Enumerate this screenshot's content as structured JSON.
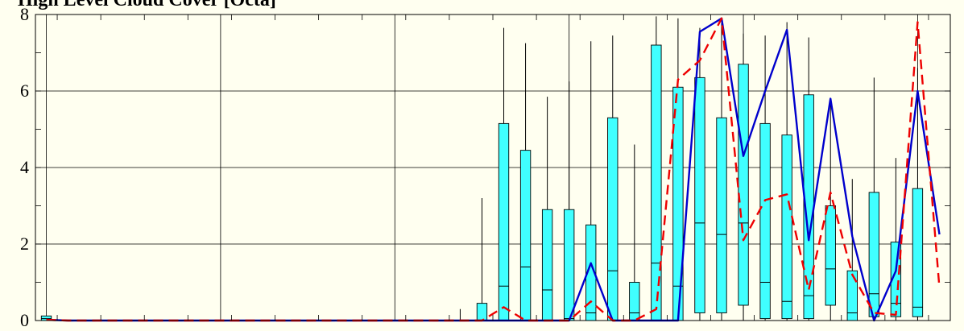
{
  "chart_data": {
    "type": "box",
    "title": "High Level Cloud Cover [Octa]",
    "xlabel": "",
    "ylabel": "",
    "ylim": [
      0,
      8
    ],
    "yticks": [
      "0",
      "2",
      "4",
      "6",
      "8"
    ],
    "grid": true,
    "legend": "none",
    "colors": {
      "background": "#fffff0",
      "box_fill": "#40ffff",
      "median_line": "#0000cc",
      "mean_line": "#ee0000",
      "gridline": "#000000"
    },
    "boxes": [
      {
        "slot": 0,
        "min": 0,
        "q1": 0,
        "median": 0.05,
        "q3": 0.12,
        "max": 0.12
      },
      {
        "slot": 1,
        "min": 0,
        "q1": 0,
        "median": 0,
        "q3": 0,
        "max": 0
      },
      {
        "slot": 2,
        "min": 0,
        "q1": 0,
        "median": 0,
        "q3": 0,
        "max": 0
      },
      {
        "slot": 3,
        "min": 0,
        "q1": 0,
        "median": 0,
        "q3": 0,
        "max": 0
      },
      {
        "slot": 4,
        "min": 0,
        "q1": 0,
        "median": 0,
        "q3": 0,
        "max": 0
      },
      {
        "slot": 5,
        "min": 0,
        "q1": 0,
        "median": 0,
        "q3": 0,
        "max": 0
      },
      {
        "slot": 6,
        "min": 0,
        "q1": 0,
        "median": 0,
        "q3": 0,
        "max": 0
      },
      {
        "slot": 7,
        "min": 0,
        "q1": 0,
        "median": 0,
        "q3": 0,
        "max": 0
      },
      {
        "slot": 8,
        "min": 0,
        "q1": 0,
        "median": 0,
        "q3": 0,
        "max": 0
      },
      {
        "slot": 9,
        "min": 0,
        "q1": 0,
        "median": 0,
        "q3": 0,
        "max": 0
      },
      {
        "slot": 10,
        "min": 0,
        "q1": 0,
        "median": 0,
        "q3": 0,
        "max": 0
      },
      {
        "slot": 11,
        "min": 0,
        "q1": 0,
        "median": 0,
        "q3": 0,
        "max": 0
      },
      {
        "slot": 12,
        "min": 0,
        "q1": 0,
        "median": 0,
        "q3": 0,
        "max": 0
      },
      {
        "slot": 13,
        "min": 0,
        "q1": 0,
        "median": 0,
        "q3": 0,
        "max": 0
      },
      {
        "slot": 14,
        "min": 0,
        "q1": 0,
        "median": 0,
        "q3": 0,
        "max": 0
      },
      {
        "slot": 15,
        "min": 0,
        "q1": 0,
        "median": 0,
        "q3": 0,
        "max": 0
      },
      {
        "slot": 16,
        "min": 0,
        "q1": 0,
        "median": 0,
        "q3": 0,
        "max": 0
      },
      {
        "slot": 17,
        "min": 0,
        "q1": 0,
        "median": 0,
        "q3": 0,
        "max": 0
      },
      {
        "slot": 18,
        "min": 0,
        "q1": 0,
        "median": 0,
        "q3": 0,
        "max": 0
      },
      {
        "slot": 19,
        "min": 0,
        "q1": 0,
        "median": 0,
        "q3": 0,
        "max": 0.3
      },
      {
        "slot": 20,
        "min": 0,
        "q1": 0,
        "median": 0,
        "q3": 0.45,
        "max": 3.2
      },
      {
        "slot": 21,
        "min": 0,
        "q1": 0,
        "median": 0.9,
        "q3": 5.15,
        "max": 7.65
      },
      {
        "slot": 22,
        "min": 0,
        "q1": 0,
        "median": 1.4,
        "q3": 4.45,
        "max": 7.25
      },
      {
        "slot": 23,
        "min": 0,
        "q1": 0,
        "median": 0.8,
        "q3": 2.9,
        "max": 5.85
      },
      {
        "slot": 24,
        "min": 0,
        "q1": 0,
        "median": 0.05,
        "q3": 2.9,
        "max": 6.25
      },
      {
        "slot": 25,
        "min": 0,
        "q1": 0,
        "median": 0.2,
        "q3": 2.5,
        "max": 7.3
      },
      {
        "slot": 26,
        "min": 0,
        "q1": 0,
        "median": 1.3,
        "q3": 5.3,
        "max": 7.45
      },
      {
        "slot": 27,
        "min": 0,
        "q1": 0,
        "median": 0.2,
        "q3": 1.0,
        "max": 4.6
      },
      {
        "slot": 28,
        "min": 0,
        "q1": 0,
        "median": 1.5,
        "q3": 7.2,
        "max": 7.95
      },
      {
        "slot": 29,
        "min": 0,
        "q1": 0,
        "median": 0.9,
        "q3": 6.1,
        "max": 7.9
      },
      {
        "slot": 30,
        "min": 0,
        "q1": 0.2,
        "median": 2.55,
        "q3": 6.35,
        "max": 7.65
      },
      {
        "slot": 31,
        "min": 0,
        "q1": 0.2,
        "median": 2.25,
        "q3": 5.3,
        "max": 7.9
      },
      {
        "slot": 32,
        "min": 0,
        "q1": 0.4,
        "median": 2.55,
        "q3": 6.7,
        "max": 7.5
      },
      {
        "slot": 33,
        "min": 0,
        "q1": 0.05,
        "median": 1.0,
        "q3": 5.15,
        "max": 7.45
      },
      {
        "slot": 34,
        "min": 0,
        "q1": 0.05,
        "median": 0.5,
        "q3": 4.85,
        "max": 7.8
      },
      {
        "slot": 35,
        "min": 0,
        "q1": 0.05,
        "median": 0.65,
        "q3": 5.9,
        "max": 7.4
      },
      {
        "slot": 36,
        "min": 0,
        "q1": 0.4,
        "median": 1.35,
        "q3": 3.0,
        "max": 5.75
      },
      {
        "slot": 37,
        "min": 0,
        "q1": 0,
        "median": 0.2,
        "q3": 1.3,
        "max": 3.7
      },
      {
        "slot": 38,
        "min": 0,
        "q1": 0.1,
        "median": 0.7,
        "q3": 3.35,
        "max": 6.35
      },
      {
        "slot": 39,
        "min": 0,
        "q1": 0.1,
        "median": 0.45,
        "q3": 2.05,
        "max": 4.25
      },
      {
        "slot": 40,
        "min": 0,
        "q1": 0.1,
        "median": 0.35,
        "q3": 3.45,
        "max": 6.6
      }
    ],
    "series": [
      {
        "style": "solid",
        "color": "#0000cc",
        "values": [
          0.02,
          0,
          0,
          0,
          0,
          0,
          0,
          0,
          0,
          0,
          0,
          0,
          0,
          0,
          0,
          0,
          0,
          0,
          0,
          0,
          0,
          0,
          0,
          0,
          0,
          1.5,
          0,
          0,
          0,
          0,
          7.55,
          7.9,
          4.3,
          6.0,
          7.6,
          2.1,
          5.8,
          2.2,
          0,
          1.3,
          6.0,
          2.25
        ]
      },
      {
        "style": "dashed",
        "color": "#ee0000",
        "values": [
          0.02,
          0,
          0,
          0,
          0,
          0,
          0,
          0,
          0,
          0,
          0,
          0,
          0,
          0,
          0,
          0,
          0,
          0,
          0,
          0,
          0,
          0.35,
          0,
          0,
          0,
          0.5,
          0,
          0,
          0.3,
          6.3,
          6.8,
          7.9,
          2.1,
          3.15,
          3.3,
          0.8,
          3.35,
          1.2,
          0.2,
          0.15,
          7.8,
          0.85
        ]
      }
    ]
  }
}
